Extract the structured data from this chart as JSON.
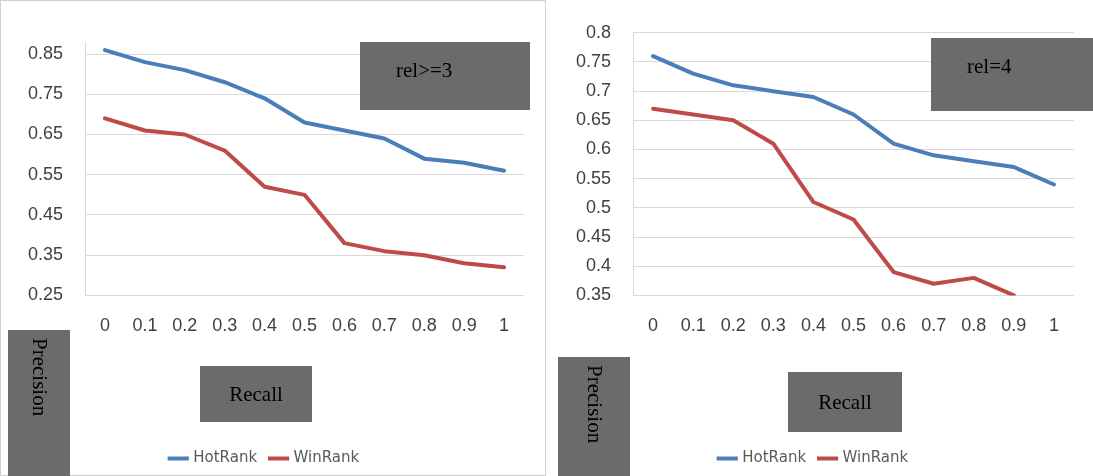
{
  "chart_data": [
    {
      "type": "line",
      "xlabel": "Recall",
      "ylabel": "Precision",
      "annotations": [
        "rel>=3"
      ],
      "categories": [
        "0",
        "0.1",
        "0.2",
        "0.3",
        "0.4",
        "0.5",
        "0.6",
        "0.7",
        "0.8",
        "0.9",
        "1"
      ],
      "series": [
        {
          "name": "HotRank",
          "color": "#4a7ebb",
          "values": [
            0.86,
            0.83,
            0.81,
            0.78,
            0.74,
            0.68,
            0.66,
            0.64,
            0.59,
            0.58,
            0.56
          ]
        },
        {
          "name": "WinRank",
          "color": "#be4b48",
          "values": [
            0.69,
            0.66,
            0.65,
            0.61,
            0.52,
            0.5,
            0.38,
            0.36,
            0.35,
            0.33,
            0.32
          ]
        }
      ],
      "ylim": [
        0.25,
        0.88
      ],
      "yticks": [
        0.25,
        0.35,
        0.45,
        0.55,
        0.65,
        0.75,
        0.85
      ],
      "grid": "y",
      "legend": "bottom",
      "marker": "none",
      "line_style": "solid"
    },
    {
      "type": "line",
      "xlabel": "Recall",
      "ylabel": "Precision",
      "annotations": [
        "rel=4"
      ],
      "categories": [
        "0",
        "0.1",
        "0.2",
        "0.3",
        "0.4",
        "0.5",
        "0.6",
        "0.7",
        "0.8",
        "0.9",
        "1"
      ],
      "series": [
        {
          "name": "HotRank",
          "color": "#4a7ebb",
          "values": [
            0.76,
            0.73,
            0.71,
            0.7,
            0.69,
            0.66,
            0.61,
            0.59,
            0.58,
            0.57,
            0.54
          ]
        },
        {
          "name": "WinRank",
          "color": "#be4b48",
          "values": [
            0.67,
            0.66,
            0.65,
            0.61,
            0.51,
            0.48,
            0.39,
            0.37,
            0.38,
            0.35,
            null
          ]
        }
      ],
      "ylim": [
        0.35,
        0.8
      ],
      "yticks": [
        0.35,
        0.4,
        0.45,
        0.5,
        0.55,
        0.6,
        0.65,
        0.7,
        0.75,
        0.8
      ],
      "grid": "y",
      "legend": "bottom",
      "marker": "none",
      "line_style": "solid"
    }
  ]
}
